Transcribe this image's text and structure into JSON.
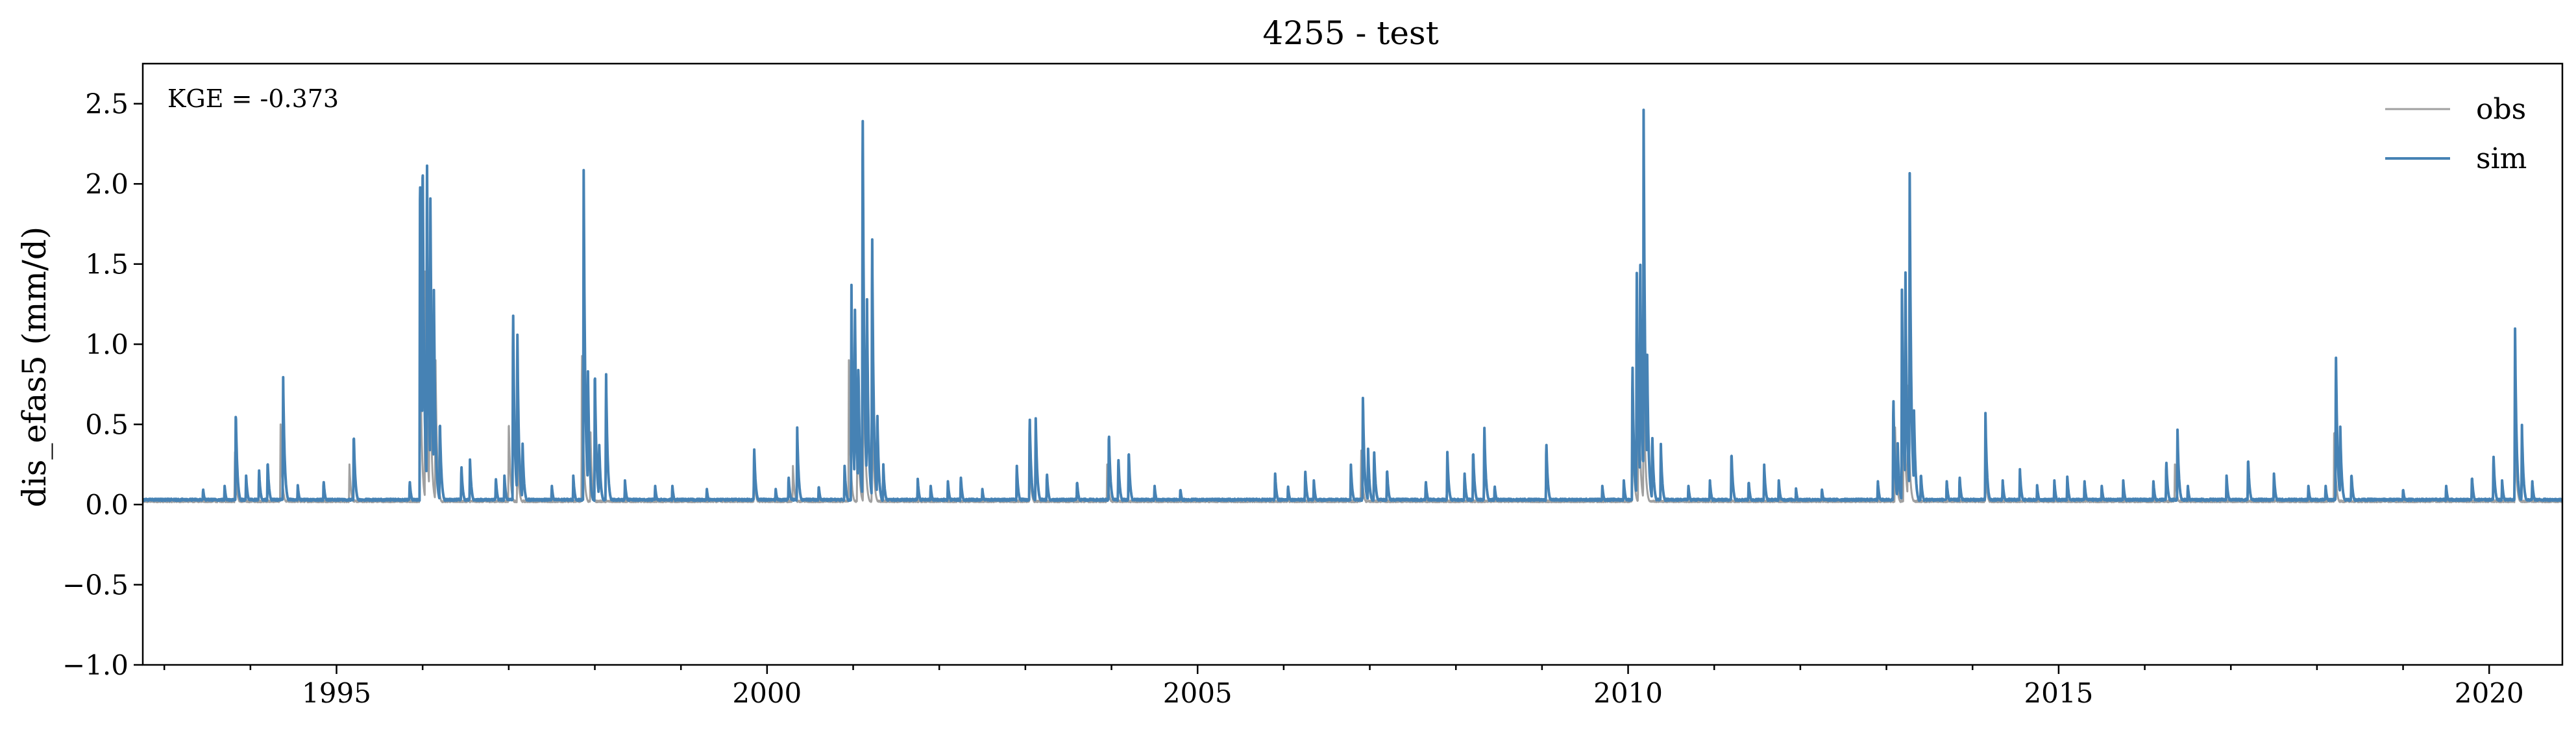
{
  "chart_data": {
    "type": "line",
    "title": "4255 - test",
    "xlabel": "",
    "ylabel": "dis_efas5 (mm/d)",
    "xlim": [
      1992.75,
      2020.85
    ],
    "ylim": [
      -1.0,
      2.75
    ],
    "xticks": [
      {
        "value": 1995,
        "label": "1995"
      },
      {
        "value": 2000,
        "label": "2000"
      },
      {
        "value": 2005,
        "label": "2005"
      },
      {
        "value": 2010,
        "label": "2010"
      },
      {
        "value": 2015,
        "label": "2015"
      },
      {
        "value": 2020,
        "label": "2020"
      }
    ],
    "yticks": [
      {
        "value": -1.0,
        "label": "−1.0"
      },
      {
        "value": -0.5,
        "label": "−0.5"
      },
      {
        "value": 0.0,
        "label": "0.0"
      },
      {
        "value": 0.5,
        "label": "0.5"
      },
      {
        "value": 1.0,
        "label": "1.0"
      },
      {
        "value": 1.5,
        "label": "1.5"
      },
      {
        "value": 2.0,
        "label": "2.0"
      },
      {
        "value": 2.5,
        "label": "2.5"
      }
    ],
    "annotation": "KGE = -0.373",
    "grid": false,
    "legend_position": "top-right",
    "baseline": 0.03,
    "series": [
      {
        "name": "obs",
        "color": "#a0a0a0",
        "peaks": [
          [
            1993.82,
            0.35
          ],
          [
            1994.35,
            0.5
          ],
          [
            1995.15,
            0.25
          ],
          [
            1995.97,
            1.2
          ],
          [
            1996.03,
            1.6
          ],
          [
            1996.08,
            1.4
          ],
          [
            1996.15,
            0.9
          ],
          [
            1997.0,
            0.55
          ],
          [
            1997.1,
            0.35
          ],
          [
            1997.85,
            1.0
          ],
          [
            1997.95,
            0.45
          ],
          [
            1999.85,
            0.2
          ],
          [
            2000.3,
            0.25
          ],
          [
            2000.95,
            0.9
          ],
          [
            2001.05,
            0.75
          ],
          [
            2001.12,
            1.25
          ],
          [
            2001.22,
            0.7
          ],
          [
            2003.05,
            0.3
          ],
          [
            2003.95,
            0.25
          ],
          [
            2006.9,
            0.35
          ],
          [
            2010.05,
            0.6
          ],
          [
            2010.12,
            1.0
          ],
          [
            2010.18,
            0.9
          ],
          [
            2013.1,
            0.5
          ],
          [
            2013.2,
            0.9
          ],
          [
            2013.25,
            0.8
          ],
          [
            2014.15,
            0.25
          ],
          [
            2016.35,
            0.25
          ],
          [
            2018.2,
            0.5
          ],
          [
            2020.3,
            0.5
          ]
        ]
      },
      {
        "name": "sim",
        "color": "#4682b4",
        "peaks": [
          [
            1993.45,
            0.1
          ],
          [
            1993.7,
            0.12
          ],
          [
            1993.83,
            0.6
          ],
          [
            1993.95,
            0.18
          ],
          [
            1994.1,
            0.22
          ],
          [
            1994.2,
            0.28
          ],
          [
            1994.38,
            0.8
          ],
          [
            1994.55,
            0.12
          ],
          [
            1994.85,
            0.15
          ],
          [
            1995.2,
            0.46
          ],
          [
            1995.85,
            0.15
          ],
          [
            1995.97,
            2.2
          ],
          [
            1996.0,
            2.3
          ],
          [
            1996.05,
            2.28
          ],
          [
            1996.09,
            2.0
          ],
          [
            1996.13,
            1.4
          ],
          [
            1996.2,
            0.55
          ],
          [
            1996.45,
            0.25
          ],
          [
            1996.55,
            0.28
          ],
          [
            1996.85,
            0.17
          ],
          [
            1996.95,
            0.18
          ],
          [
            1997.05,
            1.27
          ],
          [
            1997.1,
            1.1
          ],
          [
            1997.16,
            0.4
          ],
          [
            1997.5,
            0.12
          ],
          [
            1997.75,
            0.18
          ],
          [
            1997.87,
            2.15
          ],
          [
            1997.92,
            0.85
          ],
          [
            1998.0,
            0.88
          ],
          [
            1998.05,
            0.4
          ],
          [
            1998.13,
            0.85
          ],
          [
            1998.35,
            0.15
          ],
          [
            1998.7,
            0.12
          ],
          [
            1998.9,
            0.12
          ],
          [
            1999.3,
            0.1
          ],
          [
            1999.85,
            0.37
          ],
          [
            2000.1,
            0.1
          ],
          [
            2000.25,
            0.18
          ],
          [
            2000.35,
            0.48
          ],
          [
            2000.6,
            0.12
          ],
          [
            2000.9,
            0.25
          ],
          [
            2000.98,
            1.38
          ],
          [
            2001.02,
            1.3
          ],
          [
            2001.06,
            0.9
          ],
          [
            2001.11,
            2.62
          ],
          [
            2001.16,
            1.35
          ],
          [
            2001.22,
            1.77
          ],
          [
            2001.28,
            0.6
          ],
          [
            2001.35,
            0.25
          ],
          [
            2001.75,
            0.16
          ],
          [
            2001.9,
            0.12
          ],
          [
            2002.1,
            0.15
          ],
          [
            2002.25,
            0.18
          ],
          [
            2002.5,
            0.1
          ],
          [
            2002.9,
            0.25
          ],
          [
            2003.05,
            0.57
          ],
          [
            2003.12,
            0.55
          ],
          [
            2003.25,
            0.2
          ],
          [
            2003.6,
            0.15
          ],
          [
            2003.97,
            0.47
          ],
          [
            2004.08,
            0.3
          ],
          [
            2004.2,
            0.35
          ],
          [
            2004.5,
            0.12
          ],
          [
            2004.8,
            0.1
          ],
          [
            2005.9,
            0.2
          ],
          [
            2006.05,
            0.12
          ],
          [
            2006.25,
            0.22
          ],
          [
            2006.35,
            0.15
          ],
          [
            2006.78,
            0.25
          ],
          [
            2006.92,
            0.68
          ],
          [
            2006.98,
            0.35
          ],
          [
            2007.05,
            0.35
          ],
          [
            2007.2,
            0.23
          ],
          [
            2007.65,
            0.15
          ],
          [
            2007.9,
            0.34
          ],
          [
            2008.1,
            0.2
          ],
          [
            2008.2,
            0.35
          ],
          [
            2008.33,
            0.5
          ],
          [
            2008.45,
            0.12
          ],
          [
            2009.05,
            0.4
          ],
          [
            2009.7,
            0.12
          ],
          [
            2009.95,
            0.15
          ],
          [
            2010.05,
            0.92
          ],
          [
            2010.1,
            1.5
          ],
          [
            2010.14,
            1.65
          ],
          [
            2010.18,
            2.48
          ],
          [
            2010.22,
            1.0
          ],
          [
            2010.28,
            0.45
          ],
          [
            2010.38,
            0.38
          ],
          [
            2010.7,
            0.12
          ],
          [
            2010.95,
            0.15
          ],
          [
            2011.2,
            0.34
          ],
          [
            2011.4,
            0.15
          ],
          [
            2011.58,
            0.25
          ],
          [
            2011.75,
            0.15
          ],
          [
            2011.95,
            0.1
          ],
          [
            2012.25,
            0.1
          ],
          [
            2012.9,
            0.15
          ],
          [
            2013.08,
            0.7
          ],
          [
            2013.13,
            0.4
          ],
          [
            2013.18,
            1.35
          ],
          [
            2013.22,
            1.55
          ],
          [
            2013.27,
            2.13
          ],
          [
            2013.32,
            0.6
          ],
          [
            2013.4,
            0.2
          ],
          [
            2013.7,
            0.15
          ],
          [
            2013.85,
            0.18
          ],
          [
            2014.15,
            0.57
          ],
          [
            2014.35,
            0.15
          ],
          [
            2014.55,
            0.22
          ],
          [
            2014.75,
            0.12
          ],
          [
            2014.95,
            0.15
          ],
          [
            2015.1,
            0.18
          ],
          [
            2015.3,
            0.15
          ],
          [
            2015.5,
            0.12
          ],
          [
            2015.75,
            0.15
          ],
          [
            2016.1,
            0.15
          ],
          [
            2016.25,
            0.28
          ],
          [
            2016.38,
            0.47
          ],
          [
            2016.5,
            0.12
          ],
          [
            2016.95,
            0.18
          ],
          [
            2017.2,
            0.3
          ],
          [
            2017.5,
            0.2
          ],
          [
            2017.9,
            0.12
          ],
          [
            2018.1,
            0.12
          ],
          [
            2018.22,
            0.98
          ],
          [
            2018.27,
            0.5
          ],
          [
            2018.4,
            0.2
          ],
          [
            2019.0,
            0.1
          ],
          [
            2019.5,
            0.12
          ],
          [
            2019.8,
            0.18
          ],
          [
            2020.05,
            0.32
          ],
          [
            2020.15,
            0.15
          ],
          [
            2020.3,
            1.14
          ],
          [
            2020.38,
            0.5
          ],
          [
            2020.5,
            0.15
          ]
        ]
      }
    ]
  }
}
